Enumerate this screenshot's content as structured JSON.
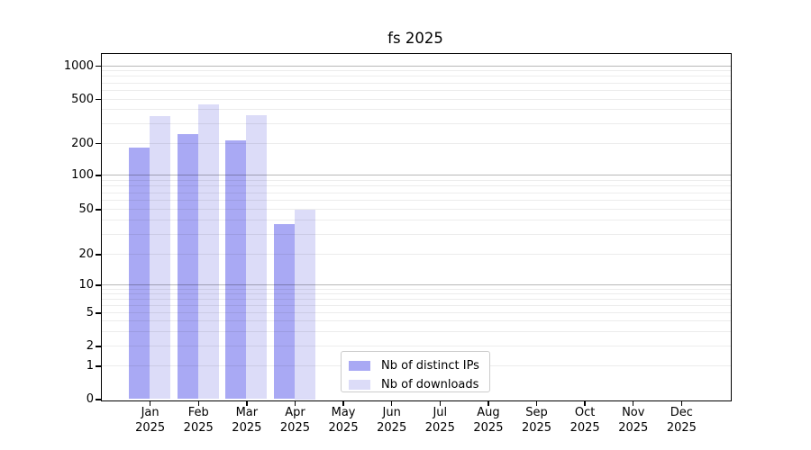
{
  "chart_data": {
    "type": "bar",
    "title": "fs 2025",
    "x_categories": [
      "Jan",
      "Feb",
      "Mar",
      "Apr",
      "May",
      "Jun",
      "Jul",
      "Aug",
      "Sep",
      "Oct",
      "Nov",
      "Dec"
    ],
    "x_year": "2025",
    "series": [
      {
        "name": "Nb of distinct IPs",
        "color": "#a9a9f4",
        "values": [
          180,
          240,
          210,
          37,
          0,
          0,
          0,
          0,
          0,
          0,
          0,
          0
        ]
      },
      {
        "name": "Nb of downloads",
        "color": "#dcdcf8",
        "values": [
          350,
          450,
          355,
          50,
          0,
          0,
          0,
          0,
          0,
          0,
          0,
          0
        ]
      }
    ],
    "yscale": "log-with-zero",
    "y_ticks": [
      0,
      1,
      2,
      5,
      10,
      20,
      50,
      100,
      200,
      500,
      1000
    ],
    "ylim": [
      0,
      1300
    ],
    "grid": true,
    "legend_position": "inside-lower-center"
  },
  "colors": {
    "background": "#ffffff",
    "axis": "#000000",
    "text": "#000000",
    "major_grid": "#b8b8b8",
    "minor_grid": "#ececec",
    "legend_border": "#cccccc",
    "series_dark": "#a9a9f4",
    "series_light": "#dcdcf8"
  }
}
